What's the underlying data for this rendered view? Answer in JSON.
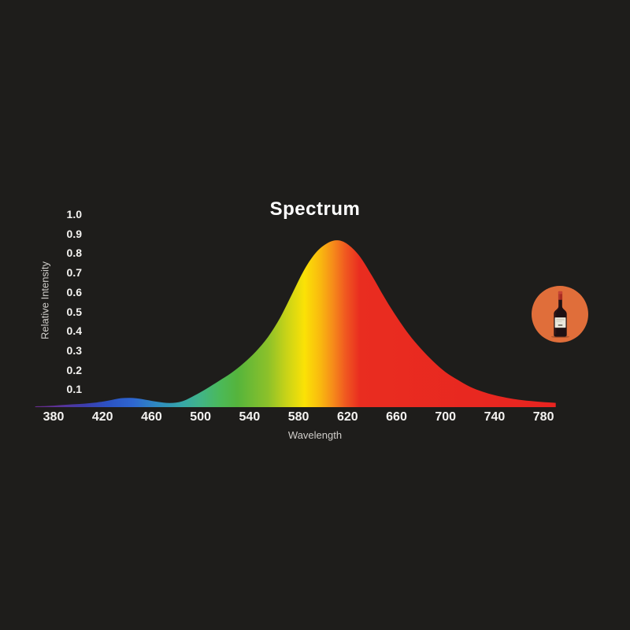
{
  "page": {
    "background_color": "#1E1D1B"
  },
  "chart": {
    "title": "Spectrum",
    "xlabel": "Wavelength",
    "ylabel": "Relative Intensity",
    "y_ticks": [
      {
        "label": "1.0",
        "value": 1.0
      },
      {
        "label": "0.9",
        "value": 0.9
      },
      {
        "label": "0.8",
        "value": 0.8
      },
      {
        "label": "0.7",
        "value": 0.7
      },
      {
        "label": "0.6",
        "value": 0.6
      },
      {
        "label": "0.5",
        "value": 0.5
      },
      {
        "label": "0.4",
        "value": 0.4
      },
      {
        "label": "0.3",
        "value": 0.3
      },
      {
        "label": "0.2",
        "value": 0.2
      },
      {
        "label": "0.1",
        "value": 0.1
      }
    ],
    "x_ticks": [
      {
        "label": "380",
        "value": 380
      },
      {
        "label": "420",
        "value": 420
      },
      {
        "label": "460",
        "value": 460
      },
      {
        "label": "500",
        "value": 500
      },
      {
        "label": "540",
        "value": 540
      },
      {
        "label": "580",
        "value": 580
      },
      {
        "label": "620",
        "value": 620
      },
      {
        "label": "660",
        "value": 660
      },
      {
        "label": "700",
        "value": 700
      },
      {
        "label": "740",
        "value": 740
      },
      {
        "label": "780",
        "value": 780
      }
    ],
    "text_color": "#F4F3F1",
    "axis_title_color": "#CFCDC9",
    "title_color": "#FFFFFF"
  },
  "chart_data": {
    "type": "area",
    "title": "Spectrum",
    "xlabel": "Wavelength",
    "ylabel": "Relative Intensity",
    "x_unit": "nm",
    "xlim": [
      365,
      790
    ],
    "ylim": [
      0,
      1.0
    ],
    "x_tick_values": [
      380,
      420,
      460,
      500,
      540,
      580,
      620,
      660,
      700,
      740,
      780
    ],
    "y_tick_values": [
      0.1,
      0.2,
      0.3,
      0.4,
      0.5,
      0.6,
      0.7,
      0.8,
      0.9,
      1.0
    ],
    "grid": false,
    "legend": false,
    "peak": {
      "wavelength": 613,
      "intensity": 0.857
    },
    "series": [
      {
        "name": "Relative Intensity",
        "x": [
          365,
          375,
          385,
          395,
          405,
          415,
          425,
          435,
          445,
          455,
          465,
          475,
          485,
          495,
          505,
          515,
          525,
          535,
          545,
          555,
          565,
          575,
          585,
          595,
          605,
          613,
          621,
          630,
          640,
          650,
          660,
          670,
          680,
          690,
          700,
          710,
          720,
          730,
          740,
          750,
          760,
          770,
          780,
          790
        ],
        "y": [
          0.004,
          0.006,
          0.01,
          0.014,
          0.018,
          0.024,
          0.034,
          0.046,
          0.047,
          0.038,
          0.027,
          0.021,
          0.03,
          0.06,
          0.095,
          0.135,
          0.175,
          0.225,
          0.285,
          0.36,
          0.46,
          0.585,
          0.71,
          0.8,
          0.848,
          0.857,
          0.833,
          0.775,
          0.675,
          0.565,
          0.465,
          0.375,
          0.3,
          0.235,
          0.18,
          0.14,
          0.105,
          0.08,
          0.062,
          0.048,
          0.038,
          0.031,
          0.026,
          0.022
        ]
      }
    ],
    "fill_gradient_stops": [
      {
        "wavelength": 365,
        "color": "#6A2C8F"
      },
      {
        "wavelength": 385,
        "color": "#5B3398"
      },
      {
        "wavelength": 405,
        "color": "#3D3DAD"
      },
      {
        "wavelength": 425,
        "color": "#2B53C4"
      },
      {
        "wavelength": 445,
        "color": "#2E66D0"
      },
      {
        "wavelength": 465,
        "color": "#2F8BC0"
      },
      {
        "wavelength": 485,
        "color": "#37A7A8"
      },
      {
        "wavelength": 500,
        "color": "#41B487"
      },
      {
        "wavelength": 515,
        "color": "#4AB95B"
      },
      {
        "wavelength": 530,
        "color": "#55B43C"
      },
      {
        "wavelength": 555,
        "color": "#8CC12A"
      },
      {
        "wavelength": 570,
        "color": "#C8D318"
      },
      {
        "wavelength": 585,
        "color": "#FBE206"
      },
      {
        "wavelength": 598,
        "color": "#F9B80F"
      },
      {
        "wavelength": 608,
        "color": "#F68C1A"
      },
      {
        "wavelength": 618,
        "color": "#F05A20"
      },
      {
        "wavelength": 630,
        "color": "#E92D20"
      },
      {
        "wavelength": 790,
        "color": "#E82420"
      }
    ]
  },
  "badge": {
    "icon": "wine-bottle-icon",
    "circle_color": "#E06E3A"
  }
}
